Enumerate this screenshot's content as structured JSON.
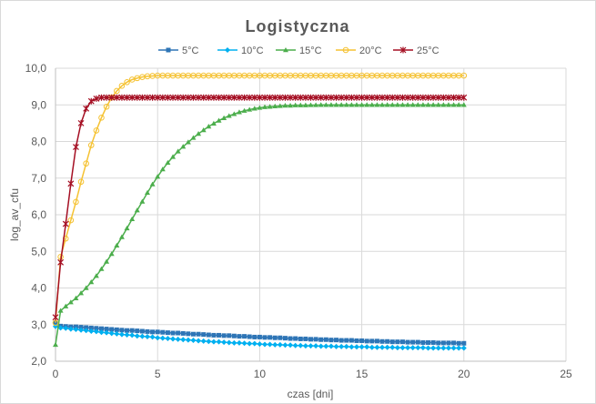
{
  "chart_data": {
    "type": "line",
    "title": "Logistyczna",
    "xlabel": "czas [dni]",
    "ylabel": "log_av_cfu",
    "xlim": [
      0,
      25
    ],
    "ylim": [
      2.0,
      10.0
    ],
    "x_ticks": [
      "0",
      "5",
      "10",
      "15",
      "20",
      "25"
    ],
    "y_ticks": [
      "2,0",
      "3,0",
      "4,0",
      "5,0",
      "6,0",
      "7,0",
      "8,0",
      "9,0",
      "10,0"
    ],
    "x_tick_values": [
      0,
      5,
      10,
      15,
      20,
      25
    ],
    "y_tick_values": [
      2,
      3,
      4,
      5,
      6,
      7,
      8,
      9,
      10
    ],
    "grid": "vertical and horizontal major gridlines",
    "legend_position": "top",
    "series": [
      {
        "name": "5°C",
        "color": "#2e75b6",
        "marker": "square",
        "x": [
          0,
          0.25,
          0.5,
          0.75,
          1,
          1.25,
          1.5,
          1.75,
          2,
          2.25,
          2.5,
          2.75,
          3,
          3.25,
          3.5,
          3.75,
          4,
          4.25,
          4.5,
          4.75,
          5,
          5.25,
          5.5,
          5.75,
          6,
          6.25,
          6.5,
          6.75,
          7,
          7.25,
          7.5,
          7.75,
          8,
          8.25,
          8.5,
          8.75,
          9,
          9.25,
          9.5,
          9.75,
          10,
          10.25,
          10.5,
          10.75,
          11,
          11.25,
          11.5,
          11.75,
          12,
          12.25,
          12.5,
          12.75,
          13,
          13.25,
          13.5,
          13.75,
          14,
          14.25,
          14.5,
          14.75,
          15,
          15.25,
          15.5,
          15.75,
          16,
          16.25,
          16.5,
          16.75,
          17,
          17.25,
          17.5,
          17.75,
          18,
          18.25,
          18.5,
          18.75,
          19,
          19.25,
          19.5,
          19.75,
          20
        ],
        "y": [
          3.05,
          2.96,
          2.95,
          2.94,
          2.94,
          2.93,
          2.92,
          2.91,
          2.9,
          2.89,
          2.88,
          2.87,
          2.86,
          2.85,
          2.84,
          2.84,
          2.83,
          2.82,
          2.81,
          2.8,
          2.8,
          2.79,
          2.78,
          2.77,
          2.77,
          2.76,
          2.75,
          2.74,
          2.74,
          2.73,
          2.72,
          2.71,
          2.71,
          2.7,
          2.7,
          2.69,
          2.68,
          2.68,
          2.67,
          2.66,
          2.66,
          2.65,
          2.65,
          2.64,
          2.64,
          2.63,
          2.62,
          2.62,
          2.61,
          2.61,
          2.6,
          2.6,
          2.59,
          2.59,
          2.58,
          2.58,
          2.57,
          2.57,
          2.57,
          2.56,
          2.56,
          2.55,
          2.55,
          2.55,
          2.54,
          2.54,
          2.53,
          2.53,
          2.53,
          2.52,
          2.52,
          2.52,
          2.51,
          2.51,
          2.51,
          2.5,
          2.5,
          2.5,
          2.5,
          2.49,
          2.49
        ]
      },
      {
        "name": "10°C",
        "color": "#00b0f0",
        "marker": "diamond",
        "x": [
          0,
          0.25,
          0.5,
          0.75,
          1,
          1.25,
          1.5,
          1.75,
          2,
          2.25,
          2.5,
          2.75,
          3,
          3.25,
          3.5,
          3.75,
          4,
          4.25,
          4.5,
          4.75,
          5,
          5.25,
          5.5,
          5.75,
          6,
          6.25,
          6.5,
          6.75,
          7,
          7.25,
          7.5,
          7.75,
          8,
          8.25,
          8.5,
          8.75,
          9,
          9.25,
          9.5,
          9.75,
          10,
          10.25,
          10.5,
          10.75,
          11,
          11.25,
          11.5,
          11.75,
          12,
          12.25,
          12.5,
          12.75,
          13,
          13.25,
          13.5,
          13.75,
          14,
          14.25,
          14.5,
          14.75,
          15,
          15.25,
          15.5,
          15.75,
          16,
          16.25,
          16.5,
          16.75,
          17,
          17.25,
          17.5,
          17.75,
          18,
          18.25,
          18.5,
          18.75,
          19,
          19.25,
          19.5,
          19.75,
          20
        ],
        "y": [
          2.95,
          2.91,
          2.9,
          2.88,
          2.87,
          2.85,
          2.84,
          2.82,
          2.81,
          2.79,
          2.78,
          2.76,
          2.75,
          2.73,
          2.72,
          2.71,
          2.69,
          2.68,
          2.67,
          2.66,
          2.64,
          2.63,
          2.62,
          2.61,
          2.6,
          2.59,
          2.58,
          2.57,
          2.56,
          2.55,
          2.54,
          2.53,
          2.53,
          2.52,
          2.51,
          2.5,
          2.5,
          2.49,
          2.48,
          2.48,
          2.47,
          2.46,
          2.46,
          2.45,
          2.45,
          2.44,
          2.44,
          2.43,
          2.43,
          2.42,
          2.42,
          2.42,
          2.41,
          2.41,
          2.41,
          2.4,
          2.4,
          2.4,
          2.39,
          2.39,
          2.39,
          2.39,
          2.38,
          2.38,
          2.38,
          2.38,
          2.38,
          2.37,
          2.37,
          2.37,
          2.37,
          2.37,
          2.37,
          2.36,
          2.36,
          2.36,
          2.36,
          2.36,
          2.36,
          2.36,
          2.36
        ]
      },
      {
        "name": "15°C",
        "color": "#4cae4c",
        "marker": "triangle",
        "x": [
          0,
          0.25,
          0.5,
          0.75,
          1,
          1.25,
          1.5,
          1.75,
          2,
          2.25,
          2.5,
          2.75,
          3,
          3.25,
          3.5,
          3.75,
          4,
          4.25,
          4.5,
          4.75,
          5,
          5.25,
          5.5,
          5.75,
          6,
          6.25,
          6.5,
          6.75,
          7,
          7.25,
          7.5,
          7.75,
          8,
          8.25,
          8.5,
          8.75,
          9,
          9.25,
          9.5,
          9.75,
          10,
          10.25,
          10.5,
          10.75,
          11,
          11.25,
          11.5,
          11.75,
          12,
          12.25,
          12.5,
          12.75,
          13,
          13.25,
          13.5,
          13.75,
          14,
          14.25,
          14.5,
          14.75,
          15,
          15.25,
          15.5,
          15.75,
          16,
          16.25,
          16.5,
          16.75,
          17,
          17.25,
          17.5,
          17.75,
          18,
          18.25,
          18.5,
          18.75,
          19,
          19.25,
          19.5,
          19.75,
          20
        ],
        "y": [
          2.45,
          3.38,
          3.5,
          3.61,
          3.72,
          3.86,
          4.0,
          4.16,
          4.33,
          4.52,
          4.72,
          4.93,
          5.16,
          5.39,
          5.63,
          5.88,
          6.12,
          6.36,
          6.6,
          6.83,
          7.04,
          7.24,
          7.42,
          7.58,
          7.73,
          7.86,
          7.98,
          8.1,
          8.21,
          8.31,
          8.41,
          8.49,
          8.57,
          8.64,
          8.7,
          8.75,
          8.8,
          8.84,
          8.87,
          8.9,
          8.92,
          8.94,
          8.95,
          8.96,
          8.97,
          8.98,
          8.98,
          8.99,
          8.99,
          8.99,
          8.995,
          8.995,
          9.0,
          9.0,
          9.0,
          9.0,
          9.0,
          9.0,
          9.0,
          9.0,
          9.0,
          9.0,
          9.0,
          9.0,
          9.0,
          9.0,
          9.0,
          9.0,
          9.0,
          9.0,
          9.0,
          9.0,
          9.0,
          9.0,
          9.0,
          9.0,
          9.0,
          9.0,
          9.0,
          9.0,
          9.0
        ]
      },
      {
        "name": "20°C",
        "color": "#f5c232",
        "marker": "circle",
        "x": [
          0,
          0.25,
          0.5,
          0.75,
          1,
          1.25,
          1.5,
          1.75,
          2,
          2.25,
          2.5,
          2.75,
          3,
          3.25,
          3.5,
          3.75,
          4,
          4.25,
          4.5,
          4.75,
          5,
          5.25,
          5.5,
          5.75,
          6,
          6.25,
          6.5,
          6.75,
          7,
          7.25,
          7.5,
          7.75,
          8,
          8.25,
          8.5,
          8.75,
          9,
          9.25,
          9.5,
          9.75,
          10,
          10.25,
          10.5,
          10.75,
          11,
          11.25,
          11.5,
          11.75,
          12,
          12.25,
          12.5,
          12.75,
          13,
          13.25,
          13.5,
          13.75,
          14,
          14.25,
          14.5,
          14.75,
          15,
          15.25,
          15.5,
          15.75,
          16,
          16.25,
          16.5,
          16.75,
          17,
          17.25,
          17.5,
          17.75,
          18,
          18.25,
          18.5,
          18.75,
          19,
          19.25,
          19.5,
          19.75,
          20
        ],
        "y": [
          3.05,
          4.85,
          5.35,
          5.85,
          6.35,
          6.9,
          7.4,
          7.9,
          8.3,
          8.65,
          8.95,
          9.2,
          9.38,
          9.52,
          9.62,
          9.69,
          9.73,
          9.76,
          9.78,
          9.79,
          9.8,
          9.8,
          9.8,
          9.8,
          9.8,
          9.8,
          9.8,
          9.8,
          9.8,
          9.8,
          9.8,
          9.8,
          9.8,
          9.8,
          9.8,
          9.8,
          9.8,
          9.8,
          9.8,
          9.8,
          9.8,
          9.8,
          9.8,
          9.8,
          9.8,
          9.8,
          9.8,
          9.8,
          9.8,
          9.8,
          9.8,
          9.8,
          9.8,
          9.8,
          9.8,
          9.8,
          9.8,
          9.8,
          9.8,
          9.8,
          9.8,
          9.8,
          9.8,
          9.8,
          9.8,
          9.8,
          9.8,
          9.8,
          9.8,
          9.8,
          9.8,
          9.8,
          9.8,
          9.8,
          9.8,
          9.8,
          9.8,
          9.8,
          9.8,
          9.8,
          9.8
        ]
      },
      {
        "name": "25°C",
        "color": "#a50f23",
        "marker": "asterisk",
        "x": [
          0,
          0.25,
          0.5,
          0.75,
          1,
          1.25,
          1.5,
          1.75,
          2,
          2.25,
          2.5,
          2.75,
          3,
          3.25,
          3.5,
          3.75,
          4,
          4.25,
          4.5,
          4.75,
          5,
          5.25,
          5.5,
          5.75,
          6,
          6.25,
          6.5,
          6.75,
          7,
          7.25,
          7.5,
          7.75,
          8,
          8.25,
          8.5,
          8.75,
          9,
          9.25,
          9.5,
          9.75,
          10,
          10.25,
          10.5,
          10.75,
          11,
          11.25,
          11.5,
          11.75,
          12,
          12.25,
          12.5,
          12.75,
          13,
          13.25,
          13.5,
          13.75,
          14,
          14.25,
          14.5,
          14.75,
          15,
          15.25,
          15.5,
          15.75,
          16,
          16.25,
          16.5,
          16.75,
          17,
          17.25,
          17.5,
          17.75,
          18,
          18.25,
          18.5,
          18.75,
          19,
          19.25,
          19.5,
          19.75,
          20
        ],
        "y": [
          3.2,
          4.7,
          5.75,
          6.85,
          7.85,
          8.5,
          8.9,
          9.1,
          9.17,
          9.2,
          9.2,
          9.2,
          9.2,
          9.2,
          9.2,
          9.2,
          9.2,
          9.2,
          9.2,
          9.2,
          9.2,
          9.2,
          9.2,
          9.2,
          9.2,
          9.2,
          9.2,
          9.2,
          9.2,
          9.2,
          9.2,
          9.2,
          9.2,
          9.2,
          9.2,
          9.2,
          9.2,
          9.2,
          9.2,
          9.2,
          9.2,
          9.2,
          9.2,
          9.2,
          9.2,
          9.2,
          9.2,
          9.2,
          9.2,
          9.2,
          9.2,
          9.2,
          9.2,
          9.2,
          9.2,
          9.2,
          9.2,
          9.2,
          9.2,
          9.2,
          9.2,
          9.2,
          9.2,
          9.2,
          9.2,
          9.2,
          9.2,
          9.2,
          9.2,
          9.2,
          9.2,
          9.2,
          9.2,
          9.2,
          9.2,
          9.2,
          9.2,
          9.2,
          9.2,
          9.2,
          9.2
        ]
      }
    ]
  }
}
